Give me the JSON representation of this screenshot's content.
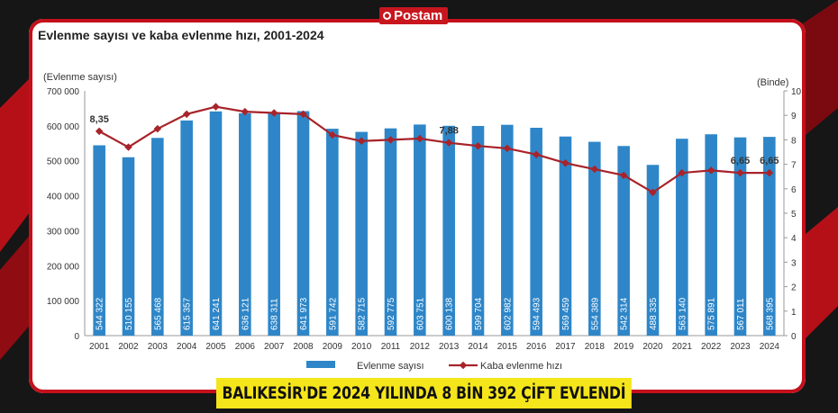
{
  "brand": {
    "name": "Postam"
  },
  "headline": "BALIKESİR'DE 2024 YILINDA 8 BİN 392 ÇİFT EVLENDİ",
  "chart_data": {
    "type": "bar",
    "title": "Evlenme sayısı ve kaba evlenme hızı, 2001-2024",
    "ylabel_left": "(Evlenme sayısı)",
    "ylabel_right": "(Binde)",
    "ylim_left": [
      0,
      700000
    ],
    "ylim_right": [
      0,
      10
    ],
    "yticks_left": [
      "700 000",
      "600 000",
      "500 000",
      "400 000",
      "300 000",
      "200 000",
      "100 000",
      "0"
    ],
    "yticks_right": [
      "10",
      "9",
      "8",
      "7",
      "6",
      "5",
      "4",
      "3",
      "2",
      "1",
      "0"
    ],
    "categories": [
      "2001",
      "2002",
      "2003",
      "2004",
      "2005",
      "2006",
      "2007",
      "2008",
      "2009",
      "2010",
      "2011",
      "2012",
      "2013",
      "2014",
      "2015",
      "2016",
      "2017",
      "2018",
      "2019",
      "2020",
      "2021",
      "2022",
      "2023",
      "2024"
    ],
    "series": [
      {
        "name": "Evlenme sayısı",
        "kind": "bar",
        "color": "#2e86c8",
        "values": [
          544322,
          510155,
          565468,
          615357,
          641241,
          636121,
          638311,
          641973,
          591742,
          582715,
          592775,
          603751,
          600138,
          599704,
          602982,
          594493,
          569459,
          554389,
          542314,
          488335,
          563140,
          575891,
          567011,
          568395
        ],
        "labels": [
          "544 322",
          "510 155",
          "565 468",
          "615 357",
          "641 241",
          "636 121",
          "638 311",
          "641 973",
          "591 742",
          "582 715",
          "592 775",
          "603 751",
          "600 138",
          "599 704",
          "602 982",
          "594 493",
          "569 459",
          "554 389",
          "542 314",
          "488 335",
          "563 140",
          "575 891",
          "567 011",
          "568 395"
        ]
      },
      {
        "name": "Kaba evlenme hızı",
        "kind": "line",
        "color": "#a8232a",
        "values": [
          8.35,
          7.7,
          8.45,
          9.05,
          9.35,
          9.15,
          9.1,
          9.05,
          8.2,
          7.95,
          8.0,
          8.05,
          7.88,
          7.75,
          7.65,
          7.4,
          7.05,
          6.8,
          6.55,
          5.85,
          6.65,
          6.75,
          6.65,
          6.65
        ],
        "point_labels": {
          "0": "8,35",
          "12": "7,88",
          "22": "6,65",
          "23": "6,65"
        }
      }
    ],
    "legend": "bottom"
  }
}
